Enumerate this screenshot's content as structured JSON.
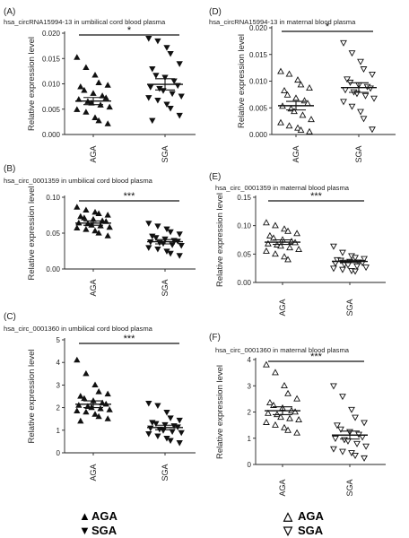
{
  "chart_data": [
    {
      "type": "scatter",
      "id": "A",
      "panel_label": "(A)",
      "title": "hsa_circRNA15994-13 in umbilical cord blood plasma",
      "ylabel": "Relative expression level",
      "ylim": [
        0,
        0.02
      ],
      "yticks": [
        "0.000",
        "0.005",
        "0.010",
        "0.015",
        "0.020"
      ],
      "ytick_values": [
        0,
        0.005,
        0.01,
        0.015,
        0.02
      ],
      "categories": [
        "AGA",
        "SGA"
      ],
      "significance": "*",
      "series": [
        {
          "name": "AGA",
          "marker": "triangle-up",
          "filled": true,
          "mean": 0.0066,
          "sem": 0.0007,
          "values": [
            0.0152,
            0.0132,
            0.0117,
            0.0102,
            0.0097,
            0.0094,
            0.0087,
            0.0081,
            0.0076,
            0.0072,
            0.0069,
            0.0065,
            0.0062,
            0.0058,
            0.0054,
            0.0049,
            0.0044,
            0.0033,
            0.0027,
            0.0021
          ]
        },
        {
          "name": "SGA",
          "marker": "triangle-down",
          "filled": true,
          "mean": 0.0099,
          "sem": 0.0011,
          "values": [
            0.019,
            0.0185,
            0.0172,
            0.016,
            0.014,
            0.013,
            0.0117,
            0.0113,
            0.0106,
            0.0097,
            0.0094,
            0.0091,
            0.0087,
            0.0081,
            0.0076,
            0.0073,
            0.0068,
            0.006,
            0.0052,
            0.0038,
            0.0028
          ]
        }
      ]
    },
    {
      "type": "scatter",
      "id": "B",
      "panel_label": "(B)",
      "title": "hsa_circ_0001359 in umbilical cord blood plasma",
      "ylabel": "Relative expression level",
      "ylim": [
        0,
        0.1
      ],
      "yticks": [
        "0.00",
        "0.05",
        "0.10"
      ],
      "ytick_values": [
        0,
        0.05,
        0.1
      ],
      "categories": [
        "AGA",
        "SGA"
      ],
      "significance": "***",
      "series": [
        {
          "name": "AGA",
          "marker": "triangle-up",
          "filled": true,
          "mean": 0.064,
          "sem": 0.003,
          "values": [
            0.086,
            0.082,
            0.079,
            0.077,
            0.075,
            0.073,
            0.071,
            0.069,
            0.067,
            0.066,
            0.064,
            0.063,
            0.061,
            0.06,
            0.058,
            0.057,
            0.055,
            0.053,
            0.05,
            0.046
          ]
        },
        {
          "name": "SGA",
          "marker": "triangle-down",
          "filled": true,
          "mean": 0.038,
          "sem": 0.003,
          "values": [
            0.064,
            0.06,
            0.056,
            0.052,
            0.049,
            0.046,
            0.044,
            0.042,
            0.04,
            0.039,
            0.038,
            0.037,
            0.036,
            0.034,
            0.033,
            0.03,
            0.028,
            0.025,
            0.022,
            0.019
          ]
        }
      ]
    },
    {
      "type": "scatter",
      "id": "C",
      "panel_label": "(C)",
      "title": "hsa_circ_0001360 in umbilical cord blood plasma",
      "ylabel": "Relative expression level",
      "ylim": [
        0,
        5
      ],
      "yticks": [
        "0",
        "1",
        "2",
        "3",
        "4",
        "5"
      ],
      "ytick_values": [
        0,
        1,
        2,
        3,
        4,
        5
      ],
      "categories": [
        "AGA",
        "SGA"
      ],
      "significance": "***",
      "series": [
        {
          "name": "AGA",
          "marker": "triangle-up",
          "filled": true,
          "mean": 2.15,
          "sem": 0.15,
          "values": [
            4.1,
            3.5,
            3.0,
            2.7,
            2.6,
            2.5,
            2.4,
            2.3,
            2.2,
            2.15,
            2.1,
            2.05,
            2.0,
            1.95,
            1.9,
            1.85,
            1.8,
            1.7,
            1.6,
            1.5,
            1.4
          ]
        },
        {
          "name": "SGA",
          "marker": "triangle-down",
          "filled": true,
          "mean": 1.12,
          "sem": 0.1,
          "values": [
            2.2,
            2.1,
            1.8,
            1.55,
            1.45,
            1.35,
            1.3,
            1.25,
            1.2,
            1.15,
            1.1,
            1.05,
            1.0,
            0.95,
            0.9,
            0.85,
            0.75,
            0.65,
            0.55,
            0.45
          ]
        }
      ]
    },
    {
      "type": "scatter",
      "id": "D",
      "panel_label": "(D)",
      "title": "hsa_circRNA15994-13 in maternal blood plasma",
      "ylabel": "Relative expression level",
      "ylim": [
        0,
        0.02
      ],
      "yticks": [
        "0.000",
        "0.005",
        "0.010",
        "0.015",
        "0.020"
      ],
      "ytick_values": [
        0,
        0.005,
        0.01,
        0.015,
        0.02
      ],
      "categories": [
        "AGA",
        "SGA"
      ],
      "significance": "*",
      "series": [
        {
          "name": "AGA",
          "marker": "triangle-up",
          "filled": false,
          "mean": 0.0054,
          "sem": 0.0008,
          "values": [
            0.0118,
            0.0113,
            0.0102,
            0.0093,
            0.0087,
            0.0082,
            0.0074,
            0.0068,
            0.0063,
            0.0058,
            0.0053,
            0.0048,
            0.0043,
            0.0036,
            0.0028,
            0.0022,
            0.0016,
            0.0012,
            0.0008,
            0.0005
          ]
        },
        {
          "name": "SGA",
          "marker": "triangle-down",
          "filled": false,
          "mean": 0.0088,
          "sem": 0.0009,
          "values": [
            0.0172,
            0.0153,
            0.0137,
            0.0123,
            0.0113,
            0.0104,
            0.0098,
            0.0093,
            0.009,
            0.0087,
            0.0084,
            0.008,
            0.0077,
            0.0073,
            0.0068,
            0.0062,
            0.0053,
            0.0043,
            0.003,
            0.001
          ]
        }
      ]
    },
    {
      "type": "scatter",
      "id": "E",
      "panel_label": "(E)",
      "title": "hsa_circ_0001359 in maternal blood plasma",
      "ylabel": "Relative expression level",
      "ylim": [
        0,
        0.15
      ],
      "yticks": [
        "0.00",
        "0.05",
        "0.10",
        "0.15"
      ],
      "ytick_values": [
        0,
        0.05,
        0.1,
        0.15
      ],
      "categories": [
        "AGA",
        "SGA"
      ],
      "significance": "***",
      "series": [
        {
          "name": "AGA",
          "marker": "triangle-up",
          "filled": false,
          "mean": 0.071,
          "sem": 0.004,
          "values": [
            0.105,
            0.1,
            0.094,
            0.09,
            0.086,
            0.082,
            0.078,
            0.075,
            0.072,
            0.07,
            0.068,
            0.066,
            0.064,
            0.061,
            0.058,
            0.055,
            0.05,
            0.045,
            0.04
          ]
        },
        {
          "name": "SGA",
          "marker": "triangle-down",
          "filled": false,
          "mean": 0.037,
          "sem": 0.002,
          "values": [
            0.064,
            0.053,
            0.047,
            0.044,
            0.042,
            0.04,
            0.039,
            0.037,
            0.036,
            0.035,
            0.034,
            0.032,
            0.031,
            0.029,
            0.027,
            0.025,
            0.023,
            0.021,
            0.02
          ]
        }
      ]
    },
    {
      "type": "scatter",
      "id": "F",
      "panel_label": "(F)",
      "title": "hsa_circ_0001360 in maternal blood plasma",
      "ylabel": "Relative expression level",
      "ylim": [
        0,
        4
      ],
      "yticks": [
        "0",
        "1",
        "2",
        "3",
        "4"
      ],
      "ytick_values": [
        0,
        1,
        2,
        3,
        4
      ],
      "categories": [
        "AGA",
        "SGA"
      ],
      "significance": "***",
      "series": [
        {
          "name": "AGA",
          "marker": "triangle-up",
          "filled": false,
          "mean": 2.05,
          "sem": 0.15,
          "values": [
            3.8,
            3.5,
            3.0,
            2.7,
            2.5,
            2.35,
            2.25,
            2.15,
            2.05,
            2.0,
            1.95,
            1.9,
            1.8,
            1.75,
            1.7,
            1.6,
            1.5,
            1.4,
            1.3,
            1.2
          ]
        },
        {
          "name": "SGA",
          "marker": "triangle-down",
          "filled": false,
          "mean": 1.12,
          "sem": 0.15,
          "values": [
            3.0,
            2.6,
            2.1,
            1.8,
            1.6,
            1.5,
            1.35,
            1.25,
            1.15,
            1.05,
            1.0,
            0.95,
            0.9,
            0.8,
            0.7,
            0.6,
            0.5,
            0.45,
            0.35,
            0.25
          ]
        }
      ]
    }
  ],
  "legends": [
    {
      "id": "filled",
      "items": [
        {
          "symbol": "▲",
          "label": "AGA"
        },
        {
          "symbol": "▼",
          "label": "SGA"
        }
      ]
    },
    {
      "id": "open",
      "items": [
        {
          "symbol": "△",
          "label": "AGA"
        },
        {
          "symbol": "▽",
          "label": "SGA"
        }
      ]
    }
  ]
}
